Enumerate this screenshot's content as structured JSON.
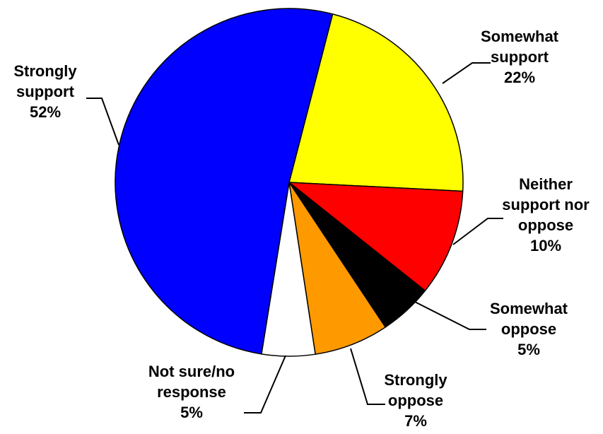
{
  "chart_data": {
    "type": "pie",
    "title": "",
    "slices": [
      {
        "label_lines": [
          "Somewhat",
          "support"
        ],
        "value_label": "22%",
        "value": 22,
        "color": "#ffff00"
      },
      {
        "label_lines": [
          "Neither",
          "support nor",
          "oppose"
        ],
        "value_label": "10%",
        "value": 10,
        "color": "#ff0000"
      },
      {
        "label_lines": [
          "Somewhat",
          "oppose"
        ],
        "value_label": "5%",
        "value": 5,
        "color": "#000000"
      },
      {
        "label_lines": [
          "Strongly",
          "oppose"
        ],
        "value_label": "7%",
        "value": 7,
        "color": "#ff9900"
      },
      {
        "label_lines": [
          "Not sure/no",
          "response"
        ],
        "value_label": "5%",
        "value": 5,
        "color": "#ffffff"
      },
      {
        "label_lines": [
          "Strongly",
          "support"
        ],
        "value_label": "52%",
        "value": 52,
        "color": "#0000ff"
      }
    ],
    "start_angle_deg": 14.5,
    "direction": "clockwise",
    "outline_color": "#000000"
  }
}
